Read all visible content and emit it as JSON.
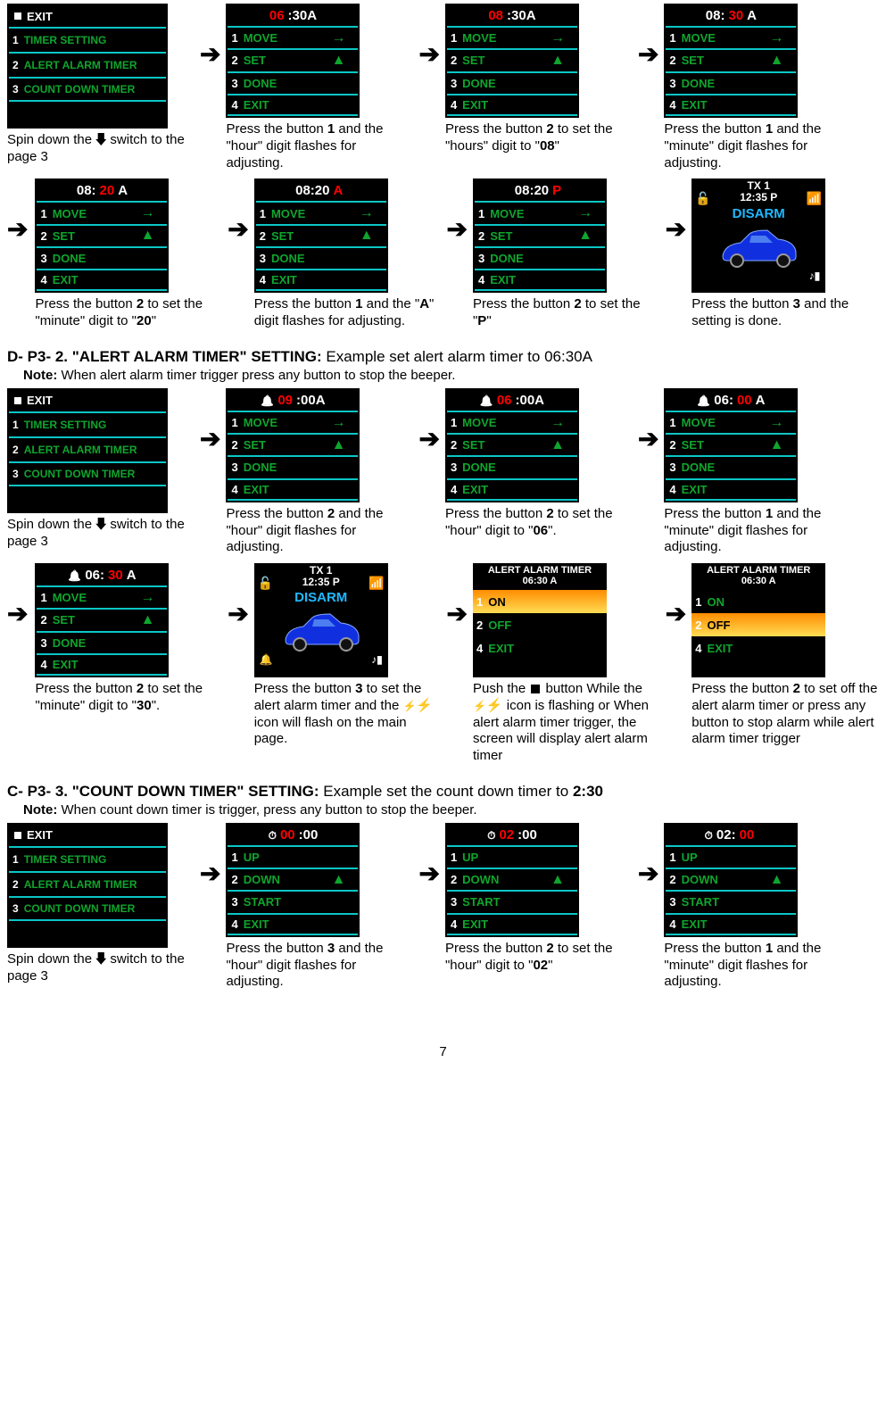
{
  "pageNum": "7",
  "sectionA": {
    "row1": [
      {
        "screen": "menu3",
        "title": "EXIT",
        "items": [
          "TIMER SETTING",
          "ALERT ALARM TIMER",
          "COUNT DOWN TIMER"
        ],
        "cap": "Spin down the  switch to the page 3"
      },
      {
        "screen": "move",
        "time": [
          "06",
          ":30A"
        ],
        "redIdx": 0,
        "items": [
          "MOVE",
          "SET",
          "DONE",
          "EXIT"
        ],
        "cap": "Press the button 1 and the \"hour\" digit flashes for adjusting."
      },
      {
        "screen": "move",
        "time": [
          "08",
          ":30A"
        ],
        "redIdx": 0,
        "items": [
          "MOVE",
          "SET",
          "DONE",
          "EXIT"
        ],
        "cap": "Press the button 2 to set the \"hours\" digit to \"08\""
      },
      {
        "screen": "move",
        "time": [
          "08:",
          "30",
          " A"
        ],
        "redIdx": 1,
        "items": [
          "MOVE",
          "SET",
          "DONE",
          "EXIT"
        ],
        "cap": "Press the button 1 and the \"minute\" digit flashes for adjusting."
      }
    ],
    "row2": [
      {
        "screen": "move",
        "time": [
          "08:",
          "20",
          " A"
        ],
        "redIdx": 1,
        "items": [
          "MOVE",
          "SET",
          "DONE",
          "EXIT"
        ],
        "cap": "Press the button 2 to set the \"minute\" digit to \"20\""
      },
      {
        "screen": "move",
        "time": [
          "08:20 ",
          "A",
          ""
        ],
        "redIdx": 1,
        "items": [
          "MOVE",
          "SET",
          "DONE",
          "EXIT"
        ],
        "cap": "Press the button 1 and the \"A\" digit flashes for adjusting."
      },
      {
        "screen": "move",
        "time": [
          "08:20 ",
          "P",
          ""
        ],
        "redIdx": 1,
        "items": [
          "MOVE",
          "SET",
          "DONE",
          "EXIT"
        ],
        "cap": "Press the button 2 to set the \"P\""
      },
      {
        "screen": "car",
        "top": "TX 1\n12:35 P",
        "disarm": "DISARM",
        "cap": "Press the button 3 and the setting is done."
      }
    ]
  },
  "sectionB": {
    "heading": "D- P3- 2. \"ALERT ALARM TIMER\" SETTING:",
    "headingEx": "Example set alert alarm timer to 06:30A",
    "note": "Note:    When alert alarm timer trigger press any button to stop the beeper.",
    "row1": [
      {
        "screen": "menu3",
        "title": "EXIT",
        "items": [
          "TIMER SETTING",
          "ALERT ALARM TIMER",
          "COUNT DOWN TIMER"
        ],
        "cap": "Spin down the  switch to the page 3"
      },
      {
        "screen": "move",
        "icon": "bell",
        "time": [
          "09",
          ":00A"
        ],
        "redIdx": 0,
        "items": [
          "MOVE",
          "SET",
          "DONE",
          "EXIT"
        ],
        "cap": "Press the button 2 and the \"hour\" digit flashes for adjusting."
      },
      {
        "screen": "move",
        "icon": "bell",
        "time": [
          "06",
          ":00A"
        ],
        "redIdx": 0,
        "items": [
          "MOVE",
          "SET",
          "DONE",
          "EXIT"
        ],
        "cap": "Press the button 2 to set the \"hour\" digit to \"06\"."
      },
      {
        "screen": "move",
        "icon": "bell",
        "time": [
          "06:",
          "00",
          "A"
        ],
        "redIdx": 1,
        "items": [
          "MOVE",
          "SET",
          "DONE",
          "EXIT"
        ],
        "cap": "Press the button 1 and the \"minute\" digit flashes for adjusting."
      }
    ],
    "row2": [
      {
        "screen": "move",
        "icon": "bell",
        "time": [
          "06:",
          "30",
          "A"
        ],
        "redIdx": 1,
        "items": [
          "MOVE",
          "SET",
          "DONE",
          "EXIT"
        ],
        "cap": "Press the button 2 to set the \"minute\" digit to \"30\"."
      },
      {
        "screen": "car",
        "top": "TX 1\n12:35 P",
        "disarm": "DISARM",
        "bell": true,
        "cap": "Press the button 3 to set the alert alarm timer and the  icon will flash on the main page."
      },
      {
        "screen": "alert",
        "hd": "ALERT ALARM TIMER\n06:30 A",
        "hi": 0,
        "opts": [
          [
            "1",
            "ON"
          ],
          [
            "2",
            "OFF"
          ],
          [
            "4",
            "EXIT"
          ]
        ],
        "cap": "Push the  button While the  icon is flashing or When alert alarm timer trigger, the screen will display alert alarm timer"
      },
      {
        "screen": "alert",
        "hd": "ALERT ALARM TIMER\n06:30 A",
        "hi": 1,
        "opts": [
          [
            "1",
            "ON"
          ],
          [
            "2",
            "OFF"
          ],
          [
            "4",
            "EXIT"
          ]
        ],
        "cap": "Press the button 2 to set off the alert alarm timer or press any button to stop alarm while alert alarm timer trigger"
      }
    ]
  },
  "sectionC": {
    "heading": "C- P3- 3. \"COUNT DOWN TIMER\" SETTING:",
    "headingEx": "Example set the count down timer to 2:30",
    "note": "Note: When count down timer is trigger, press any button to stop the beeper.",
    "row1": [
      {
        "screen": "menu3",
        "title": "EXIT",
        "items": [
          "TIMER SETTING",
          "ALERT ALARM TIMER",
          "COUNT DOWN TIMER"
        ],
        "cap": "Spin down the  switch to the page 3"
      },
      {
        "screen": "count",
        "icon": "sw",
        "time": [
          "00",
          ":00"
        ],
        "redIdx": 0,
        "items": [
          "UP",
          "DOWN",
          "START",
          "EXIT"
        ],
        "cap": "Press the button 3 and the \"hour\" digit flashes for adjusting."
      },
      {
        "screen": "count",
        "icon": "sw",
        "time": [
          "02",
          ":00"
        ],
        "redIdx": 0,
        "items": [
          "UP",
          "DOWN",
          "START",
          "EXIT"
        ],
        "cap": "Press the button 2 to set the \"hour\" digit to \"02\""
      },
      {
        "screen": "count",
        "icon": "sw",
        "time": [
          "02:",
          "00",
          ""
        ],
        "redIdx": 1,
        "items": [
          "UP",
          "DOWN",
          "START",
          "EXIT"
        ],
        "cap": "Press the button 1 and the \"minute\" digit flashes for adjusting."
      }
    ]
  }
}
